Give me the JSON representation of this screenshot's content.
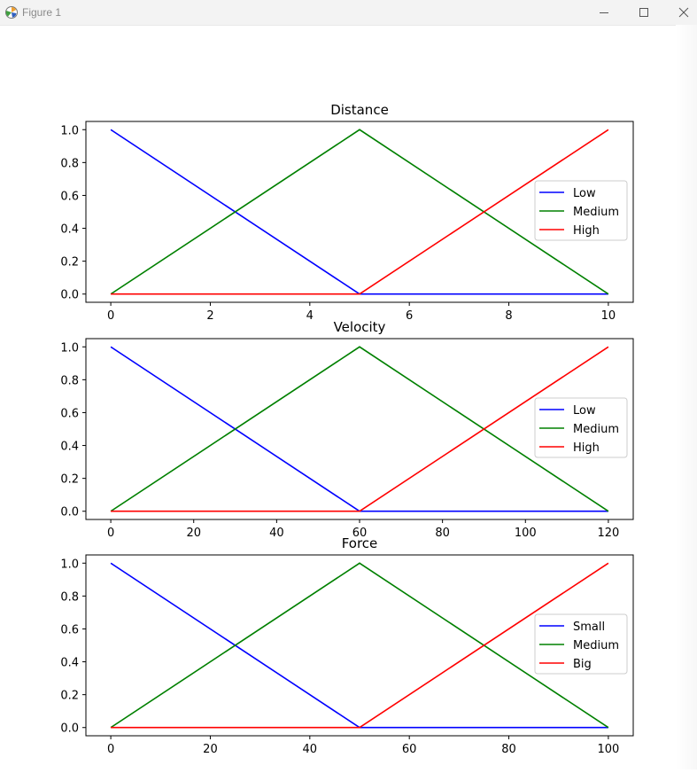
{
  "window": {
    "title": "Figure 1",
    "buttons": [
      "minimize-icon",
      "maximize-icon",
      "close-icon"
    ]
  },
  "chart_data": [
    {
      "type": "line",
      "title": "Distance",
      "xlabel": "",
      "ylabel": "",
      "xlim": [
        -0.5,
        10.5
      ],
      "ylim": [
        -0.05,
        1.05
      ],
      "xticks": [
        0,
        2,
        4,
        6,
        8,
        10
      ],
      "yticks": [
        0.0,
        0.2,
        0.4,
        0.6,
        0.8,
        1.0
      ],
      "grid": false,
      "legend_position": "center-right",
      "series": [
        {
          "name": "Low",
          "color": "#0000ff",
          "x": [
            0,
            5,
            10
          ],
          "y": [
            1,
            0,
            0
          ]
        },
        {
          "name": "Medium",
          "color": "#008000",
          "x": [
            0,
            5,
            10
          ],
          "y": [
            0,
            1,
            0
          ]
        },
        {
          "name": "High",
          "color": "#ff0000",
          "x": [
            0,
            5,
            10
          ],
          "y": [
            0,
            0,
            1
          ]
        }
      ]
    },
    {
      "type": "line",
      "title": "Velocity",
      "xlabel": "",
      "ylabel": "",
      "xlim": [
        -6,
        126
      ],
      "ylim": [
        -0.05,
        1.05
      ],
      "xticks": [
        0,
        20,
        40,
        60,
        80,
        100,
        120
      ],
      "yticks": [
        0.0,
        0.2,
        0.4,
        0.6,
        0.8,
        1.0
      ],
      "grid": false,
      "legend_position": "center-right",
      "series": [
        {
          "name": "Low",
          "color": "#0000ff",
          "x": [
            0,
            60,
            120
          ],
          "y": [
            1,
            0,
            0
          ]
        },
        {
          "name": "Medium",
          "color": "#008000",
          "x": [
            0,
            60,
            120
          ],
          "y": [
            0,
            1,
            0
          ]
        },
        {
          "name": "High",
          "color": "#ff0000",
          "x": [
            0,
            60,
            120
          ],
          "y": [
            0,
            0,
            1
          ]
        }
      ]
    },
    {
      "type": "line",
      "title": "Force",
      "xlabel": "",
      "ylabel": "",
      "xlim": [
        -5,
        105
      ],
      "ylim": [
        -0.05,
        1.05
      ],
      "xticks": [
        0,
        20,
        40,
        60,
        80,
        100
      ],
      "yticks": [
        0.0,
        0.2,
        0.4,
        0.6,
        0.8,
        1.0
      ],
      "grid": false,
      "legend_position": "center-right",
      "series": [
        {
          "name": "Small",
          "color": "#0000ff",
          "x": [
            0,
            50,
            100
          ],
          "y": [
            1,
            0,
            0
          ]
        },
        {
          "name": "Medium",
          "color": "#008000",
          "x": [
            0,
            50,
            100
          ],
          "y": [
            0,
            1,
            0
          ]
        },
        {
          "name": "Big",
          "color": "#ff0000",
          "x": [
            0,
            50,
            100
          ],
          "y": [
            0,
            0,
            1
          ]
        }
      ]
    }
  ]
}
